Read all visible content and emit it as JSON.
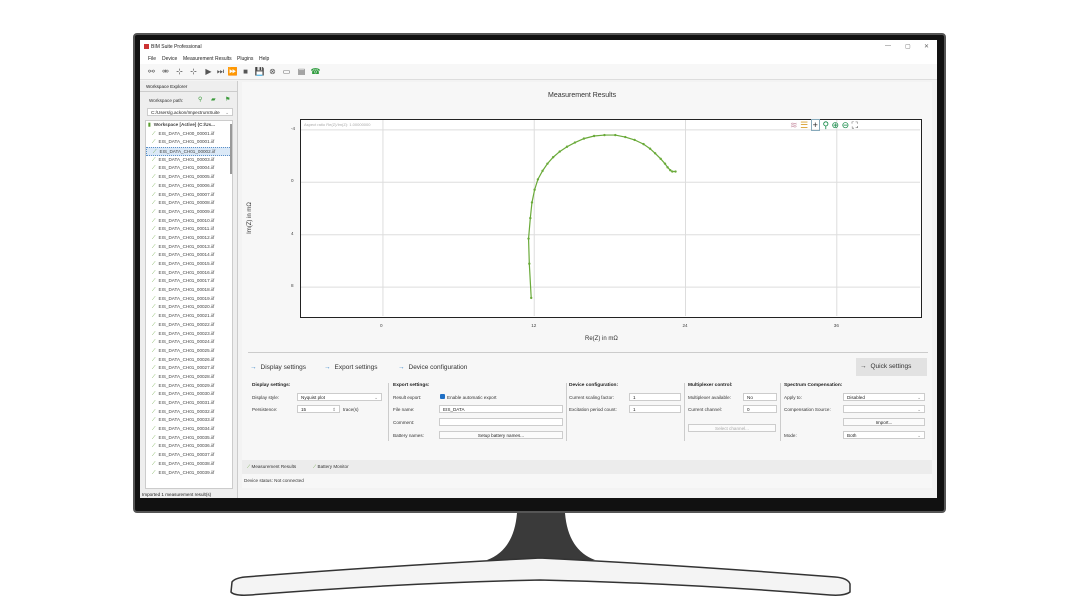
{
  "window": {
    "title": "BIM Suite Professional",
    "minimize": "—",
    "maximize": "▢",
    "close": "✕"
  },
  "menu": [
    "File",
    "Device",
    "Measurement Results",
    "Plugins",
    "Help"
  ],
  "toolbar": [
    {
      "icon": "connect-icon",
      "glyph": "⚯"
    },
    {
      "icon": "disconnect-icon",
      "glyph": "⚮"
    },
    {
      "icon": "add-marker-icon",
      "glyph": "⊹"
    },
    {
      "icon": "remove-marker-icon",
      "glyph": "⊹"
    },
    {
      "icon": "play-icon",
      "glyph": "▶"
    },
    {
      "icon": "skip-icon",
      "glyph": "⏭"
    },
    {
      "icon": "fast-forward-icon",
      "glyph": "⏩"
    },
    {
      "icon": "stop-icon",
      "glyph": "■"
    },
    {
      "icon": "save-icon",
      "glyph": "💾"
    },
    {
      "icon": "cancel-icon",
      "glyph": "⊗"
    },
    {
      "icon": "battery-icon",
      "glyph": "▭"
    },
    {
      "icon": "report-icon",
      "glyph": "▤"
    },
    {
      "icon": "phone-icon",
      "glyph": "☎"
    }
  ],
  "explorer": {
    "title": "Workspace Explorer",
    "path_label": "Workspace path:",
    "path_value": "C:/Users/g.ackon/ImpectrumSuite",
    "workspace": "Workspace [Active] (C:/Us...",
    "files": [
      "EIS_DATA_CH00_00001.iif",
      "EIS_DATA_CH01_00001.iif",
      "EIS_DATA_CH01_00002.iif",
      "EIS_DATA_CH01_00003.iif",
      "EIS_DATA_CH01_00004.iif",
      "EIS_DATA_CH01_00005.iif",
      "EIS_DATA_CH01_00006.iif",
      "EIS_DATA_CH01_00007.iif",
      "EIS_DATA_CH01_00008.iif",
      "EIS_DATA_CH01_00009.iif",
      "EIS_DATA_CH01_00010.iif",
      "EIS_DATA_CH01_00011.iif",
      "EIS_DATA_CH01_00012.iif",
      "EIS_DATA_CH01_00013.iif",
      "EIS_DATA_CH01_00014.iif",
      "EIS_DATA_CH01_00015.iif",
      "EIS_DATA_CH01_00016.iif",
      "EIS_DATA_CH01_00017.iif",
      "EIS_DATA_CH01_00018.iif",
      "EIS_DATA_CH01_00019.iif",
      "EIS_DATA_CH01_00020.iif",
      "EIS_DATA_CH01_00021.iif",
      "EIS_DATA_CH01_00022.iif",
      "EIS_DATA_CH01_00023.iif",
      "EIS_DATA_CH01_00024.iif",
      "EIS_DATA_CH01_00025.iif",
      "EIS_DATA_CH01_00026.iif",
      "EIS_DATA_CH01_00027.iif",
      "EIS_DATA_CH01_00028.iif",
      "EIS_DATA_CH01_00029.iif",
      "EIS_DATA_CH01_00030.iif",
      "EIS_DATA_CH01_00031.iif",
      "EIS_DATA_CH01_00032.iif",
      "EIS_DATA_CH01_00033.iif",
      "EIS_DATA_CH01_00034.iif",
      "EIS_DATA_CH01_00035.iif",
      "EIS_DATA_CH01_00036.iif",
      "EIS_DATA_CH01_00037.iif",
      "EIS_DATA_CH01_00038.iif",
      "EIS_DATA_CH01_00039.iif"
    ],
    "selected_index": 2,
    "status": "Imported 1 measurement result(s)"
  },
  "main": {
    "title": "Measurement Results"
  },
  "chart_data": {
    "type": "line",
    "title": "",
    "annotation": "Aspect ratio Re(Z)/Im(Z): 1.00000000",
    "xlabel": "Re(Z) in mΩ",
    "ylabel": "Im(Z) in mΩ",
    "xlim": [
      -6.5,
      42.6
    ],
    "ylim": [
      -4.75,
      10.2
    ],
    "y_inverted": true,
    "xticks": [
      0,
      12,
      24,
      36
    ],
    "yticks": [
      -4,
      0,
      4,
      8
    ],
    "grid": true,
    "color": "#6aaa3a",
    "x": [
      11.76,
      11.61,
      11.55,
      11.69,
      11.82,
      12.03,
      12.29,
      12.66,
      13.05,
      13.5,
      14.02,
      14.6,
      15.23,
      15.94,
      16.75,
      17.57,
      18.43,
      19.22,
      19.96,
      20.67,
      21.19,
      21.59,
      22.03,
      22.37,
      22.58,
      22.79,
      22.95,
      23.21
    ],
    "y": [
      8.82,
      6.21,
      4.3,
      2.73,
      1.54,
      0.57,
      -0.22,
      -0.87,
      -1.42,
      -1.91,
      -2.34,
      -2.71,
      -3.03,
      -3.33,
      -3.53,
      -3.6,
      -3.6,
      -3.45,
      -3.23,
      -2.91,
      -2.56,
      -2.21,
      -1.79,
      -1.42,
      -1.14,
      -0.92,
      -0.82,
      -0.82
    ]
  },
  "plot_tools": [
    "legend-style-icon",
    "legend-list-icon",
    "crosshair-icon",
    "zoom-icon",
    "zoom-in-icon",
    "zoom-out-icon",
    "fit-view-icon"
  ],
  "tabs": {
    "display": "Display settings",
    "export": "Export settings",
    "device": "Device configuration",
    "quick": "Quick settings"
  },
  "display": {
    "title": "Display settings:",
    "style_label": "Display style:",
    "style_value": "Nyquist plot",
    "persistence_label": "Persistence:",
    "persistence_value": "15",
    "persistence_unit": "trace(s)"
  },
  "export": {
    "title": "Export settings:",
    "result_label": "Result export:",
    "auto_export": "Enable automatic export",
    "auto_export_checked": true,
    "filename_label": "File name:",
    "filename_value": "EIS_DATA",
    "comment_label": "Comment:",
    "comment_value": "",
    "battery_label": "Battery names:",
    "battery_button": "Setup battery names..."
  },
  "device": {
    "title": "Device configuration:",
    "scaling_label": "Current scaling factor:",
    "scaling_value": "1",
    "excitation_label": "Excitation period count:",
    "excitation_value": "1"
  },
  "mux": {
    "title": "Multiplexer control:",
    "available_label": "Multiplexer available:",
    "available_value": "No",
    "channel_label": "Current channel:",
    "channel_value": "0",
    "select_button": "Select channel..."
  },
  "spectrum": {
    "title": "Spectrum Compensation:",
    "apply_label": "Apply to:",
    "apply_value": "Disabled",
    "source_label": "Compensation Source:",
    "source_value": "",
    "import_button": "Import...",
    "mode_label": "Mode:",
    "mode_value": "Both"
  },
  "bottom_tabs": [
    "Measurement Results",
    "Battery Monitor"
  ],
  "device_status": "Device status: Not connected"
}
